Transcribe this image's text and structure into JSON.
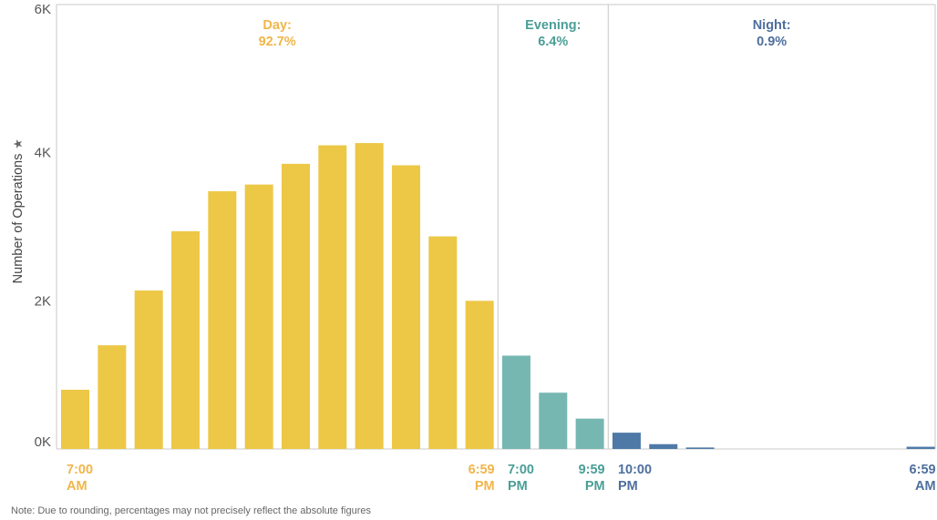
{
  "colors": {
    "day": "#ECC846",
    "evening": "#76B7B2",
    "night": "#4E79A7",
    "axis": "#C8C8C8",
    "day_text": "#F0B64A",
    "evening_text": "#4A9E96",
    "night_text": "#4E6F9E"
  },
  "chart_data": {
    "type": "bar",
    "ylabel": "Number of Operations",
    "ylabel_icon": "pin-icon",
    "ylim": [
      0,
      6000
    ],
    "yticks": [
      {
        "value": 0,
        "label": "0K"
      },
      {
        "value": 2000,
        "label": "2K"
      },
      {
        "value": 4000,
        "label": "4K"
      },
      {
        "value": 6000,
        "label": "6K"
      }
    ],
    "grid": false,
    "segments": [
      {
        "key": "day",
        "name": "Day:",
        "pct": "92.7%"
      },
      {
        "key": "evening",
        "name": "Evening:",
        "pct": "6.4%"
      },
      {
        "key": "night",
        "name": "Night:",
        "pct": "0.9%"
      }
    ],
    "bars": [
      {
        "segment": "day",
        "value": 800
      },
      {
        "segment": "day",
        "value": 1400
      },
      {
        "segment": "day",
        "value": 2140
      },
      {
        "segment": "day",
        "value": 2940
      },
      {
        "segment": "day",
        "value": 3480
      },
      {
        "segment": "day",
        "value": 3570
      },
      {
        "segment": "day",
        "value": 3850
      },
      {
        "segment": "day",
        "value": 4100
      },
      {
        "segment": "day",
        "value": 4130
      },
      {
        "segment": "day",
        "value": 3830
      },
      {
        "segment": "day",
        "value": 2870
      },
      {
        "segment": "day",
        "value": 2000
      },
      {
        "segment": "evening",
        "value": 1260
      },
      {
        "segment": "evening",
        "value": 760
      },
      {
        "segment": "evening",
        "value": 410
      },
      {
        "segment": "night",
        "value": 220
      },
      {
        "segment": "night",
        "value": 65
      },
      {
        "segment": "night",
        "value": 20
      },
      {
        "segment": "night",
        "value": 0
      },
      {
        "segment": "night",
        "value": 0
      },
      {
        "segment": "night",
        "value": 0
      },
      {
        "segment": "night",
        "value": 0
      },
      {
        "segment": "night",
        "value": 0
      },
      {
        "segment": "night",
        "value": 30
      }
    ],
    "time_labels": [
      {
        "bar": 0,
        "segment": "day",
        "align": "start",
        "lines": [
          "7:00",
          "AM"
        ]
      },
      {
        "bar": 11,
        "segment": "day",
        "align": "end",
        "lines": [
          "6:59",
          "PM"
        ]
      },
      {
        "bar": 12,
        "segment": "evening",
        "align": "start",
        "lines": [
          "7:00",
          "PM"
        ]
      },
      {
        "bar": 14,
        "segment": "evening",
        "align": "end",
        "lines": [
          "9:59",
          "PM"
        ]
      },
      {
        "bar": 15,
        "segment": "night",
        "align": "start",
        "lines": [
          "10:00",
          "PM"
        ]
      },
      {
        "bar": 23,
        "segment": "night",
        "align": "end",
        "lines": [
          "6:59",
          "AM"
        ]
      }
    ],
    "note": "Note: Due to rounding, percentages may not precisely reflect the absolute figures"
  }
}
